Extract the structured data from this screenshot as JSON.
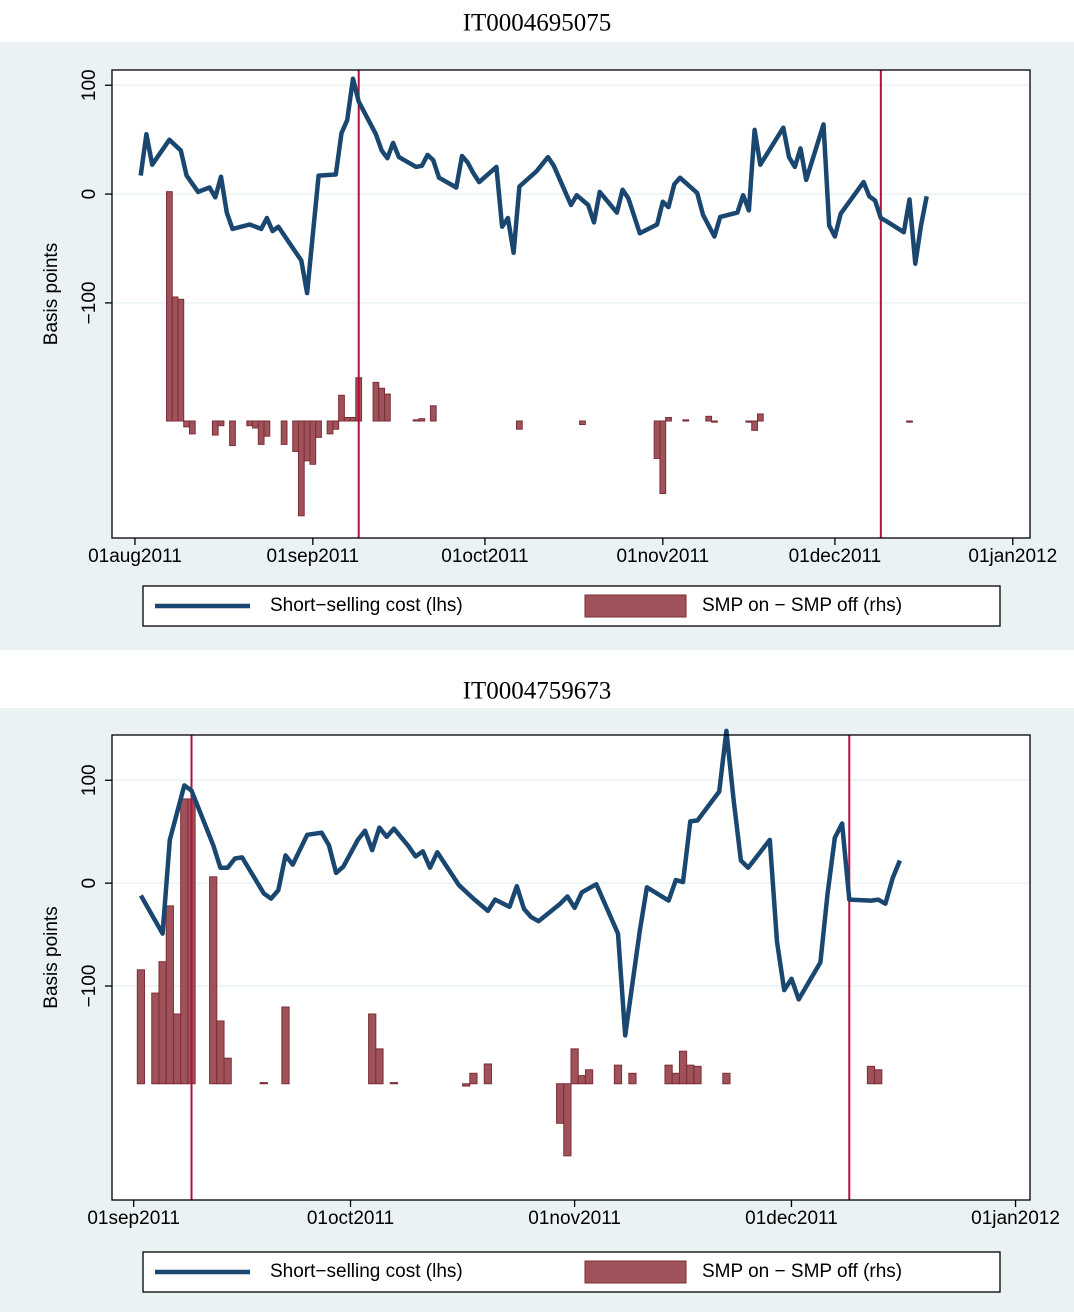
{
  "chart_data": [
    {
      "type": "line",
      "title": "IT0004695075",
      "ylabel": "Basis points",
      "xlim": [
        "2011-07-28",
        "2012-01-04"
      ],
      "xticks": [
        {
          "value": "2011-08-01",
          "label": "01aug2011"
        },
        {
          "value": "2011-09-01",
          "label": "01sep2011"
        },
        {
          "value": "2011-10-01",
          "label": "01oct2011"
        },
        {
          "value": "2011-11-01",
          "label": "01nov2011"
        },
        {
          "value": "2011-12-01",
          "label": "01dec2011"
        },
        {
          "value": "2012-01-01",
          "label": "01jan2012"
        }
      ],
      "ylim": [
        -316,
        114
      ],
      "yticks": [
        {
          "value": -100,
          "label": "−100"
        },
        0,
        100
      ],
      "y2lim": [
        -1,
        3
      ],
      "grid": true,
      "legend": "bottom",
      "vlines": [
        "2011-09-09",
        "2011-12-09"
      ],
      "vline_color": "#b5103c",
      "series": [
        {
          "name": "Short−selling cost (lhs)",
          "type": "line",
          "color": "#1a476f",
          "x": [
            "2011-08-02",
            "2011-08-03",
            "2011-08-04",
            "2011-08-07",
            "2011-08-09",
            "2011-08-10",
            "2011-08-12",
            "2011-08-14",
            "2011-08-15",
            "2011-08-16",
            "2011-08-17",
            "2011-08-18",
            "2011-08-21",
            "2011-08-23",
            "2011-08-24",
            "2011-08-25",
            "2011-08-26",
            "2011-08-30",
            "2011-08-31",
            "2011-09-02",
            "2011-09-05",
            "2011-09-06",
            "2011-09-07",
            "2011-09-08",
            "2011-09-09",
            "2011-09-12",
            "2011-09-13",
            "2011-09-14",
            "2011-09-15",
            "2011-09-16",
            "2011-09-19",
            "2011-09-20",
            "2011-09-21",
            "2011-09-22",
            "2011-09-23",
            "2011-09-26",
            "2011-09-27",
            "2011-09-28",
            "2011-09-29",
            "2011-09-30",
            "2011-10-03",
            "2011-10-04",
            "2011-10-05",
            "2011-10-06",
            "2011-10-07",
            "2011-10-10",
            "2011-10-12",
            "2011-10-13",
            "2011-10-16",
            "2011-10-17",
            "2011-10-19",
            "2011-10-20",
            "2011-10-21",
            "2011-10-24",
            "2011-10-25",
            "2011-10-26",
            "2011-10-28",
            "2011-10-31",
            "2011-11-01",
            "2011-11-02",
            "2011-11-03",
            "2011-11-04",
            "2011-11-07",
            "2011-11-08",
            "2011-11-10",
            "2011-11-11",
            "2011-11-14",
            "2011-11-15",
            "2011-11-16",
            "2011-11-17",
            "2011-11-18",
            "2011-11-22",
            "2011-11-23",
            "2011-11-24",
            "2011-11-25",
            "2011-11-26",
            "2011-11-29",
            "2011-11-30",
            "2011-12-01",
            "2011-12-02",
            "2011-12-06",
            "2011-12-07",
            "2011-12-08",
            "2011-12-09",
            "2011-12-10",
            "2011-12-13",
            "2011-12-14",
            "2011-12-15",
            "2011-12-16",
            "2011-12-17"
          ],
          "values": [
            17,
            55,
            27,
            50,
            40,
            17,
            2,
            6,
            -3,
            16,
            -17,
            -32,
            -28,
            -32,
            -22,
            -34,
            -30,
            -61,
            -91,
            17,
            18,
            56,
            68,
            106,
            85,
            55,
            40,
            33,
            47,
            34,
            25,
            26,
            36,
            31,
            15,
            6,
            35,
            29,
            19,
            11,
            25,
            -30,
            -22,
            -54,
            7,
            21,
            34,
            26,
            -10,
            -1,
            -10,
            -26,
            2,
            -17,
            4,
            -4,
            -36,
            -28,
            -7,
            -12,
            9,
            15,
            1,
            -19,
            -39,
            -21,
            -17,
            -1,
            -15,
            59,
            27,
            61,
            34,
            25,
            42,
            13,
            64,
            -29,
            -39,
            -18,
            11,
            -2,
            -6,
            -22,
            -25,
            -35,
            -5,
            -64,
            -29,
            -2
          ]
        },
        {
          "name": "SMP on − SMP off (rhs)",
          "type": "bar",
          "axis": "y2",
          "color": "#a0525a",
          "x": [
            "2011-08-07",
            "2011-08-08",
            "2011-08-09",
            "2011-08-10",
            "2011-08-11",
            "2011-08-15",
            "2011-08-16",
            "2011-08-18",
            "2011-08-21",
            "2011-08-22",
            "2011-08-23",
            "2011-08-24",
            "2011-08-27",
            "2011-08-29",
            "2011-08-30",
            "2011-08-31",
            "2011-09-01",
            "2011-09-02",
            "2011-09-04",
            "2011-09-05",
            "2011-09-06",
            "2011-09-07",
            "2011-09-08",
            "2011-09-09",
            "2011-09-12",
            "2011-09-13",
            "2011-09-14",
            "2011-09-19",
            "2011-09-20",
            "2011-09-22",
            "2011-10-07",
            "2011-10-18",
            "2011-10-31",
            "2011-11-01",
            "2011-11-02",
            "2011-11-05",
            "2011-11-09",
            "2011-11-10",
            "2011-11-16",
            "2011-11-17",
            "2011-11-18",
            "2011-12-14"
          ],
          "values": [
            1.96,
            1.06,
            1.04,
            -0.05,
            -0.11,
            -0.12,
            -0.04,
            -0.21,
            -0.04,
            -0.06,
            -0.2,
            -0.13,
            -0.2,
            -0.26,
            -0.81,
            -0.34,
            -0.37,
            -0.14,
            -0.11,
            -0.07,
            0.22,
            0.03,
            0.03,
            0.37,
            0.33,
            0.28,
            0.23,
            0.01,
            0.02,
            0.13,
            -0.07,
            -0.03,
            -0.32,
            -0.62,
            0.03,
            0.01,
            0.04,
            -0.01,
            -0.01,
            -0.08,
            0.06,
            -0.01
          ]
        }
      ]
    },
    {
      "type": "line",
      "title": "IT0004759673",
      "ylabel": "Basis points",
      "xlim": [
        "2011-08-29",
        "2012-01-03"
      ],
      "xticks": [
        {
          "value": "2011-09-01",
          "label": "01sep2011"
        },
        {
          "value": "2011-10-01",
          "label": "01oct2011"
        },
        {
          "value": "2011-11-01",
          "label": "01nov2011"
        },
        {
          "value": "2011-12-01",
          "label": "01dec2011"
        },
        {
          "value": "2012-01-01",
          "label": "01jan2012"
        }
      ],
      "ylim": [
        -308,
        144
      ],
      "yticks": [
        {
          "value": -100,
          "label": "−100"
        },
        0,
        100
      ],
      "y2lim": [
        -1,
        3
      ],
      "grid": true,
      "legend": "bottom",
      "vlines": [
        "2011-09-09",
        "2011-12-09"
      ],
      "vline_color": "#b5103c",
      "series": [
        {
          "name": "Short−selling cost (lhs)",
          "type": "line",
          "color": "#1a476f",
          "x": [
            "2011-09-02",
            "2011-09-05",
            "2011-09-06",
            "2011-09-08",
            "2011-09-09",
            "2011-09-12",
            "2011-09-13",
            "2011-09-14",
            "2011-09-15",
            "2011-09-16",
            "2011-09-19",
            "2011-09-20",
            "2011-09-21",
            "2011-09-22",
            "2011-09-23",
            "2011-09-25",
            "2011-09-27",
            "2011-09-28",
            "2011-09-29",
            "2011-09-30",
            "2011-10-02",
            "2011-10-03",
            "2011-10-04",
            "2011-10-05",
            "2011-10-06",
            "2011-10-07",
            "2011-10-09",
            "2011-10-10",
            "2011-10-11",
            "2011-10-12",
            "2011-10-13",
            "2011-10-16",
            "2011-10-18",
            "2011-10-20",
            "2011-10-21",
            "2011-10-23",
            "2011-10-24",
            "2011-10-25",
            "2011-10-26",
            "2011-10-27",
            "2011-10-30",
            "2011-10-31",
            "2011-11-01",
            "2011-11-02",
            "2011-11-04",
            "2011-11-07",
            "2011-11-08",
            "2011-11-10",
            "2011-11-11",
            "2011-11-14",
            "2011-11-15",
            "2011-11-16",
            "2011-11-17",
            "2011-11-18",
            "2011-11-21",
            "2011-11-22",
            "2011-11-23",
            "2011-11-24",
            "2011-11-25",
            "2011-11-28",
            "2011-11-29",
            "2011-11-30",
            "2011-12-01",
            "2011-12-02",
            "2011-12-05",
            "2011-12-06",
            "2011-12-07",
            "2011-12-08",
            "2011-12-09",
            "2011-12-12",
            "2011-12-13",
            "2011-12-14",
            "2011-12-15",
            "2011-12-16"
          ],
          "values": [
            -12,
            -49,
            42,
            95,
            90,
            37,
            15,
            15,
            24,
            25,
            -10,
            -15,
            -7,
            27,
            18,
            47,
            49,
            37,
            10,
            16,
            42,
            51,
            32,
            54,
            45,
            53,
            36,
            26,
            31,
            15,
            30,
            -2,
            -15,
            -27,
            -16,
            -23,
            -3,
            -25,
            -33,
            -37,
            -20,
            -13,
            -24,
            -9,
            -1,
            -49,
            -148,
            -47,
            -4,
            -17,
            3,
            1,
            60,
            61,
            89,
            148,
            81,
            22,
            15,
            42,
            -57,
            -104,
            -93,
            -113,
            -77,
            -10,
            44,
            58,
            -16,
            -17,
            -16,
            -20,
            5,
            22
          ]
        },
        {
          "name": "SMP on − SMP off (rhs)",
          "type": "bar",
          "axis": "y2",
          "color": "#a0525a",
          "x": [
            "2011-09-02",
            "2011-09-04",
            "2011-09-05",
            "2011-09-06",
            "2011-09-07",
            "2011-09-08",
            "2011-09-09",
            "2011-09-12",
            "2011-09-13",
            "2011-09-14",
            "2011-09-19",
            "2011-09-22",
            "2011-10-04",
            "2011-10-05",
            "2011-10-07",
            "2011-10-17",
            "2011-10-18",
            "2011-10-20",
            "2011-10-30",
            "2011-10-31",
            "2011-11-01",
            "2011-11-02",
            "2011-11-03",
            "2011-11-07",
            "2011-11-09",
            "2011-11-14",
            "2011-11-15",
            "2011-11-16",
            "2011-11-17",
            "2011-11-18",
            "2011-11-22",
            "2011-12-12",
            "2011-12-13"
          ],
          "values": [
            0.98,
            0.78,
            1.05,
            1.53,
            0.6,
            2.45,
            2.45,
            1.78,
            0.54,
            0.22,
            0.01,
            0.66,
            0.6,
            0.3,
            0.01,
            -0.02,
            0.09,
            0.17,
            -0.34,
            -0.62,
            0.3,
            0.07,
            0.12,
            0.16,
            0.09,
            0.16,
            0.09,
            0.28,
            0.16,
            0.15,
            0.09,
            0.15,
            0.12
          ]
        }
      ]
    }
  ]
}
